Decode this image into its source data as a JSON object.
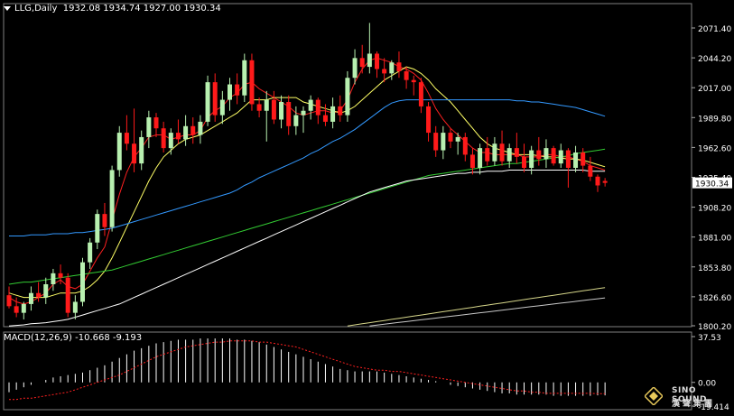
{
  "header": {
    "symbol": "LLG,Daily",
    "ohlc": "1932.08 1934.74 1927.00 1930.34"
  },
  "macd": {
    "label": "MACD(12,26,9) -10.668 -9.193",
    "axis_top": "37.53",
    "axis_zero": "0.00",
    "axis_bottom": "-19.414"
  },
  "logo": {
    "line1": "SINO SOUND",
    "line2": "漢聲集團",
    "icon": "diamond-emblem-icon"
  },
  "colors": {
    "background": "#000000",
    "up_candle": "#b8f0b0",
    "down_candle": "#ff1a1a",
    "ma5": "#ff2020",
    "ma10": "#ffff66",
    "ma30": "#3399ff",
    "ma60": "#33cc33",
    "ma120": "#ffffff",
    "ma250": "#d6d68a",
    "ma365": "#c8c8c8",
    "macd_hist": "#ffffff",
    "macd_signal": "#ff2020",
    "price_tag_bg": "#ffffff"
  },
  "chart_data": {
    "type": "candlestick",
    "title": "LLG,Daily",
    "y_ticks": [
      "2071.40",
      "2044.20",
      "2017.00",
      "1989.80",
      "1962.60",
      "1935.40",
      "1908.20",
      "1881.00",
      "1853.80",
      "1826.60",
      "1800.20"
    ],
    "ylim": [
      1800.2,
      2071.4
    ],
    "current_price": "1930.34",
    "candles": [
      [
        1828,
        1836,
        1816,
        1818
      ],
      [
        1818,
        1826,
        1808,
        1812
      ],
      [
        1812,
        1822,
        1806,
        1820
      ],
      [
        1820,
        1836,
        1814,
        1830
      ],
      [
        1830,
        1840,
        1822,
        1826
      ],
      [
        1826,
        1844,
        1820,
        1838
      ],
      [
        1838,
        1852,
        1832,
        1848
      ],
      [
        1848,
        1856,
        1838,
        1844
      ],
      [
        1844,
        1848,
        1808,
        1812
      ],
      [
        1812,
        1828,
        1806,
        1822
      ],
      [
        1822,
        1862,
        1818,
        1858
      ],
      [
        1858,
        1880,
        1852,
        1876
      ],
      [
        1876,
        1906,
        1870,
        1902
      ],
      [
        1902,
        1912,
        1882,
        1890
      ],
      [
        1890,
        1946,
        1886,
        1942
      ],
      [
        1942,
        1982,
        1936,
        1976
      ],
      [
        1976,
        1992,
        1960,
        1966
      ],
      [
        1966,
        1998,
        1940,
        1948
      ],
      [
        1948,
        1978,
        1942,
        1972
      ],
      [
        1972,
        1996,
        1962,
        1990
      ],
      [
        1990,
        1994,
        1972,
        1980
      ],
      [
        1980,
        1986,
        1958,
        1962
      ],
      [
        1962,
        1980,
        1956,
        1976
      ],
      [
        1976,
        1988,
        1966,
        1970
      ],
      [
        1970,
        1992,
        1964,
        1982
      ],
      [
        1982,
        1990,
        1966,
        1974
      ],
      [
        1974,
        1992,
        1966,
        1986
      ],
      [
        1986,
        2028,
        1982,
        2022
      ],
      [
        2022,
        2030,
        1986,
        1992
      ],
      [
        1992,
        2014,
        1984,
        2006
      ],
      [
        2006,
        2026,
        1996,
        2020
      ],
      [
        2020,
        2030,
        2002,
        2010
      ],
      [
        2010,
        2048,
        2004,
        2042
      ],
      [
        2042,
        2048,
        1996,
        2002
      ],
      [
        2002,
        2008,
        1990,
        1996
      ],
      [
        1996,
        2014,
        1968,
        2006
      ],
      [
        2006,
        2014,
        1984,
        1988
      ],
      [
        1988,
        2010,
        1980,
        2004
      ],
      [
        2004,
        2010,
        1974,
        1982
      ],
      [
        1982,
        2000,
        1974,
        1992
      ],
      [
        1992,
        2000,
        1976,
        1996
      ],
      [
        1996,
        2010,
        1988,
        2006
      ],
      [
        2006,
        2008,
        1984,
        1992
      ],
      [
        1992,
        2002,
        1982,
        1986
      ],
      [
        1986,
        2008,
        1980,
        2000
      ],
      [
        2000,
        2010,
        1986,
        1992
      ],
      [
        1992,
        2032,
        1986,
        2026
      ],
      [
        2026,
        2052,
        2020,
        2044
      ],
      [
        2044,
        2056,
        2030,
        2036
      ],
      [
        2036,
        2076,
        2030,
        2048
      ],
      [
        2048,
        2050,
        2026,
        2034
      ],
      [
        2034,
        2044,
        2022,
        2030
      ],
      [
        2030,
        2042,
        2024,
        2040
      ],
      [
        2040,
        2050,
        2026,
        2032
      ],
      [
        2032,
        2036,
        2016,
        2024
      ],
      [
        2024,
        2028,
        2010,
        2022
      ],
      [
        2022,
        2026,
        1994,
        2000
      ],
      [
        2000,
        2004,
        1968,
        1976
      ],
      [
        1976,
        1982,
        1954,
        1960
      ],
      [
        1960,
        1982,
        1952,
        1976
      ],
      [
        1976,
        1980,
        1962,
        1968
      ],
      [
        1968,
        1976,
        1956,
        1972
      ],
      [
        1972,
        1976,
        1950,
        1956
      ],
      [
        1956,
        1962,
        1938,
        1944
      ],
      [
        1944,
        1966,
        1938,
        1962
      ],
      [
        1962,
        1972,
        1946,
        1950
      ],
      [
        1950,
        1972,
        1946,
        1966
      ],
      [
        1966,
        1978,
        1946,
        1950
      ],
      [
        1950,
        1966,
        1944,
        1962
      ],
      [
        1962,
        1976,
        1948,
        1954
      ],
      [
        1954,
        1966,
        1940,
        1944
      ],
      [
        1944,
        1964,
        1938,
        1960
      ],
      [
        1960,
        1972,
        1946,
        1952
      ],
      [
        1952,
        1970,
        1944,
        1962
      ],
      [
        1962,
        1964,
        1946,
        1948
      ],
      [
        1948,
        1966,
        1944,
        1960
      ],
      [
        1960,
        1962,
        1926,
        1944
      ],
      [
        1944,
        1964,
        1940,
        1958
      ],
      [
        1958,
        1962,
        1940,
        1946
      ],
      [
        1946,
        1954,
        1932,
        1936
      ],
      [
        1936,
        1938,
        1922,
        1928
      ],
      [
        1932.08,
        1934.74,
        1927.0,
        1930.34
      ]
    ],
    "series": [
      {
        "key": "ma5",
        "values": [
          1826,
          1822,
          1820,
          1822,
          1826,
          1830,
          1838,
          1842,
          1836,
          1834,
          1838,
          1850,
          1862,
          1872,
          1896,
          1920,
          1940,
          1954,
          1962,
          1972,
          1974,
          1974,
          1970,
          1972,
          1974,
          1974,
          1978,
          1990,
          1996,
          2000,
          2008,
          2012,
          2020,
          2022,
          2016,
          2012,
          2008,
          2004,
          2000,
          1994,
          1992,
          1994,
          1996,
          1996,
          1994,
          1996,
          2006,
          2022,
          2034,
          2042,
          2044,
          2042,
          2040,
          2036,
          2034,
          2030,
          2024,
          2012,
          1998,
          1988,
          1980,
          1974,
          1968,
          1962,
          1958,
          1958,
          1956,
          1956,
          1956,
          1956,
          1954,
          1954,
          1954,
          1956,
          1956,
          1954,
          1954,
          1952,
          1950,
          1946,
          1944,
          1942
        ]
      },
      {
        "key": "ma10",
        "values": [
          1830,
          1828,
          1826,
          1826,
          1826,
          1826,
          1828,
          1830,
          1830,
          1830,
          1832,
          1836,
          1842,
          1850,
          1862,
          1876,
          1890,
          1904,
          1918,
          1932,
          1944,
          1954,
          1960,
          1966,
          1970,
          1972,
          1974,
          1978,
          1982,
          1986,
          1990,
          1994,
          2000,
          2006,
          2006,
          2006,
          2008,
          2008,
          2008,
          2008,
          2004,
          2002,
          2000,
          1998,
          1996,
          1994,
          1996,
          2000,
          2006,
          2012,
          2018,
          2024,
          2028,
          2032,
          2036,
          2034,
          2030,
          2024,
          2016,
          2010,
          2004,
          1996,
          1988,
          1980,
          1972,
          1966,
          1962,
          1960,
          1958,
          1956,
          1956,
          1956,
          1955,
          1954,
          1954,
          1953,
          1952,
          1952,
          1951,
          1949,
          1947,
          1945
        ]
      },
      {
        "key": "ma30",
        "values": [
          1882,
          1882,
          1882,
          1883,
          1883,
          1883,
          1884,
          1884,
          1884,
          1885,
          1885,
          1886,
          1887,
          1888,
          1889,
          1891,
          1893,
          1895,
          1897,
          1899,
          1901,
          1903,
          1905,
          1907,
          1909,
          1911,
          1913,
          1915,
          1917,
          1919,
          1921,
          1924,
          1928,
          1931,
          1935,
          1938,
          1941,
          1944,
          1947,
          1950,
          1953,
          1957,
          1960,
          1964,
          1968,
          1971,
          1975,
          1979,
          1984,
          1989,
          1994,
          1999,
          2003,
          2005,
          2006,
          2006,
          2006,
          2006,
          2006,
          2006,
          2006,
          2006,
          2006,
          2006,
          2006,
          2006,
          2006,
          2006,
          2006,
          2005,
          2005,
          2004,
          2004,
          2003,
          2002,
          2001,
          2000,
          1999,
          1997,
          1995,
          1993,
          1991
        ]
      },
      {
        "key": "ma60",
        "values": [
          1838,
          1839,
          1840,
          1840,
          1841,
          1842,
          1843,
          1844,
          1845,
          1846,
          1847,
          1848,
          1849,
          1850,
          1851,
          1853,
          1855,
          1857,
          1859,
          1861,
          1863,
          1865,
          1867,
          1869,
          1871,
          1873,
          1875,
          1877,
          1879,
          1881,
          1883,
          1885,
          1887,
          1889,
          1891,
          1893,
          1895,
          1897,
          1899,
          1901,
          1903,
          1905,
          1907,
          1909,
          1911,
          1913,
          1915,
          1917,
          1919,
          1921,
          1923,
          1925,
          1927,
          1929,
          1931,
          1933,
          1935,
          1937,
          1938,
          1939,
          1940,
          1941,
          1942,
          1943,
          1944,
          1945,
          1946,
          1947,
          1948,
          1948,
          1949,
          1950,
          1951,
          1952,
          1953,
          1954,
          1955,
          1957,
          1958,
          1959,
          1960,
          1961
        ]
      },
      {
        "key": "ma120",
        "values": [
          1800,
          1800.5,
          1801,
          1802,
          1802.5,
          1803,
          1804,
          1805,
          1806,
          1808,
          1810,
          1812,
          1814,
          1816,
          1818,
          1820,
          1823,
          1826,
          1829,
          1832,
          1835,
          1838,
          1841,
          1844,
          1847,
          1850,
          1853,
          1856,
          1859,
          1862,
          1865,
          1868,
          1871,
          1874,
          1877,
          1880,
          1883,
          1886,
          1889,
          1892,
          1895,
          1898,
          1901,
          1904,
          1907,
          1910,
          1913,
          1916,
          1919,
          1922,
          1924,
          1926,
          1928,
          1930,
          1932,
          1933,
          1934,
          1935,
          1936,
          1937,
          1938,
          1939,
          1939,
          1940,
          1940,
          1941,
          1941,
          1941,
          1942,
          1942,
          1942,
          1942,
          1942,
          1942,
          1942,
          1942,
          1942,
          1942,
          1942,
          1941,
          1941,
          1941
        ]
      },
      {
        "key": "ma250",
        "values": [
          null,
          null,
          null,
          null,
          null,
          null,
          null,
          null,
          null,
          null,
          null,
          null,
          null,
          null,
          null,
          null,
          null,
          null,
          null,
          null,
          null,
          null,
          null,
          null,
          null,
          null,
          null,
          null,
          null,
          null,
          null,
          null,
          null,
          null,
          null,
          null,
          null,
          null,
          null,
          null,
          null,
          null,
          null,
          null,
          null,
          null,
          1800,
          1801,
          1802,
          1803,
          1804,
          1805,
          1806,
          1807,
          1808,
          1809,
          1810,
          1811,
          1812,
          1813,
          1814,
          1815,
          1816,
          1817,
          1818,
          1819,
          1820,
          1821,
          1822,
          1823,
          1824,
          1825,
          1826,
          1827,
          1828,
          1829,
          1830,
          1831,
          1832,
          1833,
          1834,
          1835
        ]
      },
      {
        "key": "ma365",
        "values": [
          null,
          null,
          null,
          null,
          null,
          null,
          null,
          null,
          null,
          null,
          null,
          null,
          null,
          null,
          null,
          null,
          null,
          null,
          null,
          null,
          null,
          null,
          null,
          null,
          null,
          null,
          null,
          null,
          null,
          null,
          null,
          null,
          null,
          null,
          null,
          null,
          null,
          null,
          null,
          null,
          null,
          null,
          null,
          null,
          null,
          null,
          null,
          null,
          null,
          1800,
          1800.8,
          1801.6,
          1802.4,
          1803.2,
          1804,
          1804.8,
          1805.6,
          1806.4,
          1807.2,
          1808,
          1808.8,
          1809.6,
          1810.4,
          1811.2,
          1812,
          1812.8,
          1813.6,
          1814.4,
          1815.2,
          1816,
          1816.8,
          1817.6,
          1818.4,
          1819.2,
          1820,
          1820.8,
          1821.6,
          1822.4,
          1823.2,
          1824,
          1824.8,
          1825.6
        ]
      }
    ],
    "macd": {
      "ylim": [
        -19.414,
        37.53
      ],
      "histogram": [
        -8,
        -6,
        -4,
        -2,
        0,
        2,
        4,
        5,
        6,
        7,
        8,
        10,
        12,
        14,
        17,
        20,
        23,
        26,
        28,
        30,
        32,
        33,
        34,
        35,
        35,
        35,
        36,
        36,
        36,
        36,
        36,
        35,
        35,
        34,
        33,
        31,
        29,
        27,
        25,
        23,
        21,
        19,
        17,
        15,
        13,
        11,
        10,
        9,
        9,
        9,
        9,
        8,
        7,
        6,
        5,
        4,
        3,
        2,
        1,
        0,
        -2,
        -3,
        -4,
        -5,
        -6,
        -7,
        -8,
        -9,
        -9,
        -10,
        -10,
        -10,
        -10,
        -10,
        -11,
        -11,
        -11,
        -11,
        -11,
        -11,
        -10.668,
        -10.668
      ],
      "signal": [
        -14,
        -14,
        -13,
        -13,
        -12,
        -11,
        -10,
        -9,
        -8,
        -6,
        -4,
        -2,
        0,
        2,
        4,
        6,
        9,
        12,
        15,
        18,
        21,
        23,
        25,
        27,
        29,
        30,
        31,
        32,
        33,
        33,
        34,
        34,
        34,
        34,
        33,
        33,
        32,
        31,
        30,
        29,
        27,
        25,
        23,
        21,
        19,
        17,
        15,
        13,
        12,
        11,
        10,
        10,
        9,
        9,
        8,
        7,
        6,
        5,
        4,
        3,
        2,
        1,
        0,
        -1,
        -2,
        -3,
        -4,
        -5,
        -6,
        -7,
        -7,
        -8,
        -8,
        -9,
        -9,
        -9,
        -9,
        -9,
        -9,
        -9,
        -9.193,
        -9.193
      ]
    }
  }
}
